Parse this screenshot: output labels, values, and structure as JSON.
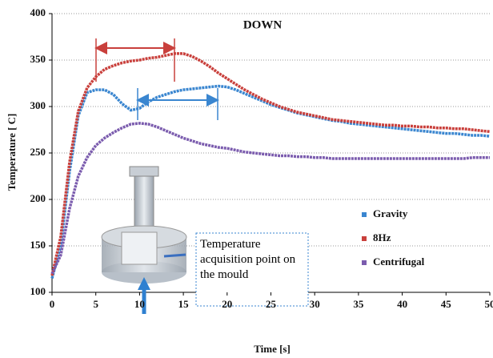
{
  "chart_data": {
    "type": "line",
    "title": "DOWN",
    "x_label": "Time  [s]",
    "y_label": "Temperature   [ C]",
    "x": [
      0,
      1,
      2,
      3,
      4,
      5,
      6,
      7,
      8,
      9,
      10,
      11,
      12,
      13,
      14,
      15,
      16,
      17,
      18,
      19,
      20,
      21,
      22,
      23,
      24,
      25,
      26,
      27,
      28,
      29,
      30,
      31,
      32,
      33,
      34,
      35,
      36,
      37,
      38,
      39,
      40,
      41,
      42,
      43,
      44,
      45,
      46,
      47,
      48,
      49,
      50
    ],
    "series": [
      {
        "name": "Gravity",
        "color": "#3a86d0",
        "values": [
          115,
          150,
          230,
          290,
          315,
          318,
          318,
          313,
          303,
          296,
          298,
          305,
          310,
          313,
          316,
          318,
          319,
          320,
          321,
          322,
          321,
          318,
          314,
          310,
          306,
          302,
          299,
          296,
          293,
          291,
          289,
          287,
          285,
          284,
          282,
          281,
          280,
          279,
          278,
          277,
          276,
          275,
          274,
          273,
          272,
          271,
          271,
          270,
          269,
          269,
          268
        ]
      },
      {
        "name": "8Hz",
        "color": "#c9403c",
        "values": [
          118,
          160,
          240,
          295,
          320,
          332,
          340,
          344,
          347,
          349,
          350,
          352,
          353,
          355,
          357,
          357,
          354,
          349,
          343,
          336,
          330,
          324,
          318,
          313,
          308,
          304,
          300,
          297,
          294,
          292,
          290,
          288,
          286,
          285,
          284,
          283,
          282,
          281,
          280,
          280,
          279,
          279,
          278,
          278,
          277,
          277,
          276,
          276,
          275,
          274,
          273
        ]
      },
      {
        "name": "Centrifugal",
        "color": "#7b5cae",
        "values": [
          120,
          140,
          190,
          225,
          245,
          258,
          266,
          272,
          277,
          281,
          282,
          281,
          278,
          274,
          270,
          266,
          263,
          260,
          258,
          256,
          255,
          253,
          251,
          250,
          249,
          248,
          247,
          247,
          246,
          246,
          245,
          245,
          244,
          244,
          244,
          244,
          244,
          244,
          244,
          244,
          244,
          244,
          244,
          244,
          244,
          244,
          244,
          244,
          245,
          245,
          245
        ]
      }
    ],
    "xlim": [
      0,
      50
    ],
    "xticks": [
      0,
      5,
      10,
      15,
      20,
      25,
      30,
      35,
      40,
      45,
      50
    ],
    "ylim": [
      100,
      400
    ],
    "yticks": [
      100,
      150,
      200,
      250,
      300,
      350,
      400
    ],
    "grid": true,
    "legend": "right",
    "annotation": "Temperature acquisition point on the mould"
  }
}
